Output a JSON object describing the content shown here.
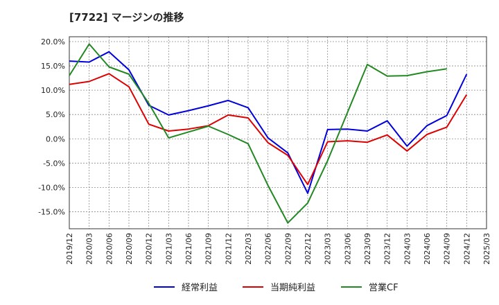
{
  "chart_data": {
    "type": "line",
    "title": "[7722]  マージンの推移",
    "x": [
      "2019/12",
      "2020/03",
      "2020/06",
      "2020/09",
      "2020/12",
      "2021/03",
      "2021/06",
      "2021/09",
      "2021/12",
      "2022/03",
      "2022/06",
      "2022/09",
      "2022/12",
      "2023/03",
      "2023/06",
      "2023/09",
      "2023/12",
      "2024/03",
      "2024/06",
      "2024/09",
      "2024/12",
      "2025/03"
    ],
    "x_tick_labels": [
      "2019/12",
      "2020/03",
      "2020/06",
      "2020/09",
      "2020/12",
      "2021/03",
      "2021/06",
      "2021/09",
      "2021/12",
      "2022/03",
      "2022/06",
      "2022/09",
      "2022/12",
      "2023/03",
      "2023/06",
      "2023/09",
      "2023/12",
      "2024/03",
      "2024/06",
      "2024/09",
      "2024/12",
      "2025/03"
    ],
    "y_tick_labels": [
      "20.0%",
      "15.0%",
      "10.0%",
      "5.0%",
      "0.0%",
      "-5.0%",
      "-10.0%",
      "-15.0%"
    ],
    "y_ticks": [
      20,
      15,
      10,
      5,
      0,
      -5,
      -10,
      -15
    ],
    "ylim": [
      -18.5,
      21
    ],
    "grid": true,
    "legend_position": "bottom",
    "series": [
      {
        "name": "経常利益",
        "color": "#0000dd",
        "values": [
          16.0,
          15.8,
          17.9,
          14.2,
          6.9,
          4.9,
          5.8,
          6.8,
          7.9,
          6.4,
          0.2,
          -2.9,
          -11.2,
          1.9,
          2.0,
          1.6,
          3.7,
          -1.5,
          2.7,
          4.8,
          13.3,
          null
        ]
      },
      {
        "name": "当期純利益",
        "color": "#dd0000",
        "values": [
          11.2,
          11.8,
          13.4,
          10.7,
          3.0,
          1.6,
          2.0,
          2.7,
          4.9,
          4.3,
          -0.8,
          -3.4,
          -9.4,
          -0.6,
          -0.4,
          -0.7,
          0.8,
          -2.5,
          0.9,
          2.4,
          9.1,
          null
        ]
      },
      {
        "name": "営業CF",
        "color": "#228822",
        "values": [
          13.0,
          19.5,
          14.8,
          13.3,
          7.3,
          0.2,
          1.4,
          2.6,
          0.9,
          -1.0,
          -9.6,
          -17.3,
          -13.2,
          -4.5,
          5.4,
          15.3,
          12.9,
          13.0,
          13.8,
          14.4,
          null,
          null
        ]
      }
    ]
  }
}
